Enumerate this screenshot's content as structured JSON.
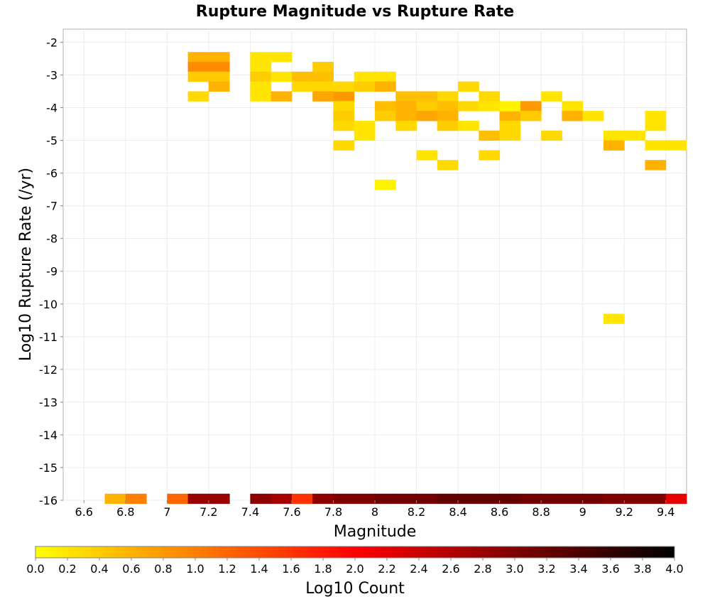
{
  "chart_data": {
    "type": "heatmap",
    "title": "Rupture Magnitude vs Rupture Rate",
    "xlabel": "Magnitude",
    "ylabel": "Log10 Rupture Rate (/yr)",
    "colorbar_label": "Log10 Count",
    "xlim": [
      6.5,
      9.5
    ],
    "ylim": [
      -16.0,
      -1.6
    ],
    "x_ticks": [
      "6.6",
      "6.8",
      "7",
      "7.2",
      "7.4",
      "7.6",
      "7.8",
      "8",
      "8.2",
      "8.4",
      "8.6",
      "8.8",
      "9",
      "9.2",
      "9.4"
    ],
    "y_ticks": [
      "-2",
      "-3",
      "-4",
      "-5",
      "-6",
      "-7",
      "-8",
      "-9",
      "-10",
      "-11",
      "-12",
      "-13",
      "-14",
      "-15",
      "-16"
    ],
    "colorbar_ticks": [
      "0.0",
      "0.2",
      "0.4",
      "0.6",
      "0.8",
      "1.0",
      "1.2",
      "1.4",
      "1.6",
      "1.8",
      "2.0",
      "2.2",
      "2.4",
      "2.6",
      "2.8",
      "3.0",
      "3.2",
      "3.4",
      "3.6",
      "3.8",
      "4.0"
    ],
    "colorbar_range": [
      0.0,
      4.0
    ],
    "cell_size": {
      "magnitude": 0.1,
      "log10_rate": 0.3
    },
    "grid": true,
    "colorscale": [
      "#ffff00",
      "#ff7f00",
      "#ff0000",
      "#800000",
      "#000000"
    ],
    "cells": [
      [
        7.1,
        -2.3,
        0.6
      ],
      [
        7.2,
        -2.3,
        0.6
      ],
      [
        7.1,
        -2.6,
        0.9
      ],
      [
        7.2,
        -2.6,
        0.9
      ],
      [
        7.1,
        -2.9,
        0.4
      ],
      [
        7.2,
        -2.9,
        0.4
      ],
      [
        7.2,
        -3.2,
        0.6
      ],
      [
        7.1,
        -3.5,
        0.3
      ],
      [
        7.4,
        -2.3,
        0.2
      ],
      [
        7.5,
        -2.3,
        0.2
      ],
      [
        7.4,
        -2.6,
        0.2
      ],
      [
        7.4,
        -2.9,
        0.4
      ],
      [
        7.5,
        -2.9,
        0.2
      ],
      [
        7.6,
        -2.9,
        0.5
      ],
      [
        7.7,
        -2.9,
        0.5
      ],
      [
        7.4,
        -3.2,
        0.2
      ],
      [
        7.6,
        -3.2,
        0.3
      ],
      [
        7.7,
        -3.2,
        0.3
      ],
      [
        7.4,
        -3.5,
        0.2
      ],
      [
        7.5,
        -3.5,
        0.6
      ],
      [
        7.7,
        -3.5,
        0.7
      ],
      [
        7.8,
        -3.5,
        0.8
      ],
      [
        7.7,
        -2.6,
        0.4
      ],
      [
        7.8,
        -3.2,
        0.3
      ],
      [
        7.8,
        -3.8,
        0.3
      ],
      [
        7.8,
        -4.1,
        0.4
      ],
      [
        7.8,
        -4.4,
        0.3
      ],
      [
        7.9,
        -4.4,
        0.2
      ],
      [
        7.9,
        -4.7,
        0.2
      ],
      [
        7.8,
        -5.0,
        0.3
      ],
      [
        7.9,
        -2.9,
        0.2
      ],
      [
        8.0,
        -2.9,
        0.2
      ],
      [
        7.9,
        -3.2,
        0.4
      ],
      [
        8.0,
        -3.2,
        0.6
      ],
      [
        8.0,
        -3.8,
        0.5
      ],
      [
        8.1,
        -3.8,
        0.5
      ],
      [
        8.0,
        -4.1,
        0.4
      ],
      [
        8.1,
        -4.1,
        0.4
      ],
      [
        8.0,
        -6.2,
        0.1
      ],
      [
        8.1,
        -3.5,
        0.5
      ],
      [
        8.2,
        -3.5,
        0.5
      ],
      [
        8.3,
        -3.5,
        0.3
      ],
      [
        8.1,
        -3.8,
        0.6
      ],
      [
        8.2,
        -3.8,
        0.4
      ],
      [
        8.3,
        -3.8,
        0.5
      ],
      [
        8.1,
        -4.1,
        0.6
      ],
      [
        8.2,
        -4.1,
        0.7
      ],
      [
        8.3,
        -4.1,
        0.6
      ],
      [
        8.1,
        -4.4,
        0.3
      ],
      [
        8.3,
        -4.4,
        0.4
      ],
      [
        8.4,
        -3.8,
        0.3
      ],
      [
        8.5,
        -3.8,
        0.2
      ],
      [
        8.4,
        -4.4,
        0.2
      ],
      [
        8.2,
        -5.3,
        0.2
      ],
      [
        8.3,
        -5.6,
        0.3
      ],
      [
        8.4,
        -3.2,
        0.3
      ],
      [
        8.5,
        -3.5,
        0.3
      ],
      [
        8.6,
        -4.1,
        0.6
      ],
      [
        8.6,
        -4.4,
        0.3
      ],
      [
        8.5,
        -4.7,
        0.5
      ],
      [
        8.6,
        -4.7,
        0.3
      ],
      [
        8.5,
        -5.3,
        0.3
      ],
      [
        8.6,
        -3.8,
        0.1
      ],
      [
        8.7,
        -3.8,
        0.8
      ],
      [
        8.7,
        -4.1,
        0.4
      ],
      [
        8.8,
        -3.5,
        0.2
      ],
      [
        8.8,
        -4.7,
        0.3
      ],
      [
        8.9,
        -3.8,
        0.2
      ],
      [
        8.9,
        -4.1,
        0.6
      ],
      [
        9.0,
        -4.1,
        0.2
      ],
      [
        9.1,
        -4.7,
        0.2
      ],
      [
        9.2,
        -4.7,
        0.2
      ],
      [
        9.1,
        -5.0,
        0.6
      ],
      [
        9.3,
        -4.1,
        0.2
      ],
      [
        9.3,
        -4.4,
        0.2
      ],
      [
        9.3,
        -5.0,
        0.2
      ],
      [
        9.4,
        -5.0,
        0.2
      ],
      [
        9.3,
        -5.6,
        0.6
      ],
      [
        9.1,
        -10.3,
        0.2
      ],
      [
        6.7,
        -15.8,
        0.6
      ],
      [
        6.8,
        -15.8,
        1.0
      ],
      [
        7.0,
        -15.8,
        1.2
      ],
      [
        7.1,
        -15.8,
        2.8
      ],
      [
        7.2,
        -15.8,
        2.8
      ],
      [
        7.4,
        -15.8,
        2.9
      ],
      [
        7.5,
        -15.8,
        2.7
      ],
      [
        7.6,
        -15.8,
        1.6
      ],
      [
        7.7,
        -15.8,
        2.9
      ],
      [
        7.8,
        -15.8,
        3.0
      ],
      [
        7.9,
        -15.8,
        3.0
      ],
      [
        8.0,
        -15.8,
        3.1
      ],
      [
        8.1,
        -15.8,
        3.1
      ],
      [
        8.2,
        -15.8,
        3.1
      ],
      [
        8.3,
        -15.8,
        3.2
      ],
      [
        8.4,
        -15.8,
        3.2
      ],
      [
        8.5,
        -15.8,
        3.2
      ],
      [
        8.6,
        -15.8,
        3.2
      ],
      [
        8.7,
        -15.8,
        3.1
      ],
      [
        8.8,
        -15.8,
        3.1
      ],
      [
        8.9,
        -15.8,
        3.1
      ],
      [
        9.0,
        -15.8,
        3.1
      ],
      [
        9.1,
        -15.8,
        3.0
      ],
      [
        9.2,
        -15.8,
        3.0
      ],
      [
        9.3,
        -15.8,
        3.0
      ],
      [
        9.4,
        -15.8,
        2.2
      ]
    ]
  }
}
